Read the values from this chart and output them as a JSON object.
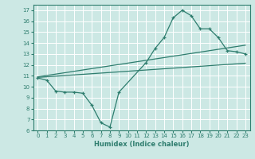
{
  "title": "",
  "xlabel": "Humidex (Indice chaleur)",
  "ylabel": "",
  "background_color": "#cce8e4",
  "grid_color": "#ffffff",
  "line_color": "#2e7d6e",
  "xlim": [
    -0.5,
    23.5
  ],
  "ylim": [
    6,
    17.5
  ],
  "xticks": [
    0,
    1,
    2,
    3,
    4,
    5,
    6,
    7,
    8,
    9,
    10,
    11,
    12,
    13,
    14,
    15,
    16,
    17,
    18,
    19,
    20,
    21,
    22,
    23
  ],
  "yticks": [
    6,
    7,
    8,
    9,
    10,
    11,
    12,
    13,
    14,
    15,
    16,
    17
  ],
  "curve_x": [
    0,
    1,
    2,
    3,
    4,
    5,
    6,
    7,
    8,
    9,
    12,
    13,
    14,
    15,
    16,
    17,
    18,
    19,
    20,
    21,
    22,
    23
  ],
  "curve_y": [
    10.8,
    10.6,
    9.6,
    9.5,
    9.5,
    9.4,
    8.3,
    6.7,
    6.3,
    9.5,
    12.2,
    13.5,
    14.5,
    16.3,
    17.0,
    16.5,
    15.3,
    15.3,
    14.5,
    13.3,
    13.2,
    13.0
  ],
  "line2_x": [
    0,
    23
  ],
  "line2_y": [
    10.9,
    13.8
  ],
  "line3_x": [
    0,
    23
  ],
  "line3_y": [
    10.85,
    12.15
  ]
}
